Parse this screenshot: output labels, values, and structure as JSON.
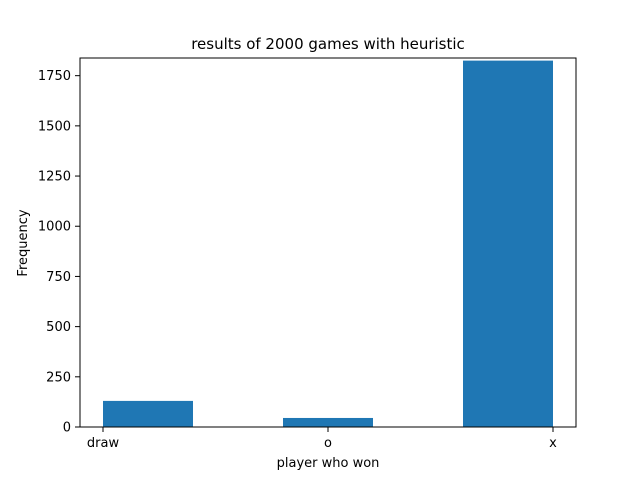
{
  "chart_data": {
    "type": "bar",
    "title": "results of 2000 games  with heuristic",
    "xlabel": "player who won",
    "ylabel": "Frequency",
    "categories": [
      "draw",
      "o",
      "x"
    ],
    "values": [
      130,
      45,
      1825
    ],
    "ylim": [
      0,
      1838
    ],
    "yticks": [
      0,
      250,
      500,
      750,
      1000,
      1250,
      1500,
      1750
    ],
    "grid": false,
    "legend": "none",
    "colors": {
      "bar": "#1f77b4",
      "axis": "#000000",
      "background": "#ffffff"
    }
  }
}
